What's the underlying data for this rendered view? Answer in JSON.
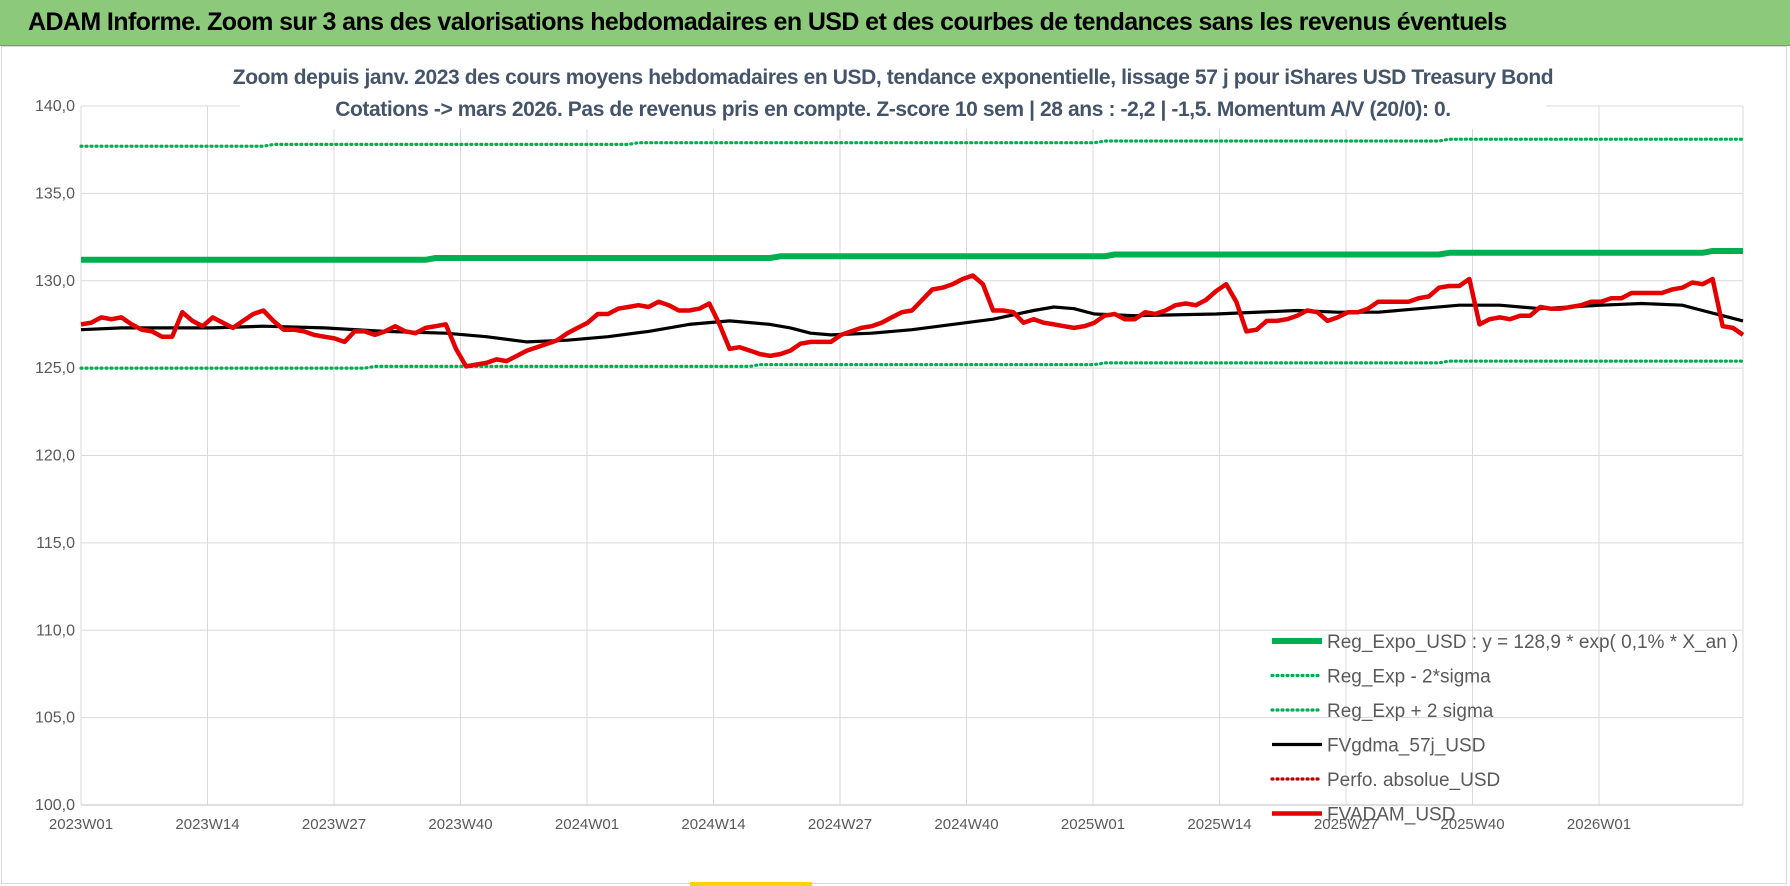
{
  "header": {
    "title": "ADAM Informe. Zoom sur 3 ans des valorisations hebdomadaires en USD et des courbes de tendances sans les revenus éventuels"
  },
  "chart_data": {
    "type": "line",
    "title_lines": [
      "Zoom depuis janv. 2023 des cours moyens hebdomadaires en USD, tendance exponentielle, lissage 57 j pour iShares USD Treasury Bond",
      "Cotations -> mars 2026. Pas de revenus pris en compte. Z-score 10 sem | 28 ans : -2,2 | -1,5. Momentum A/V (20/0): 0."
    ],
    "xlabel": "",
    "ylabel": "",
    "ylim": [
      100,
      140
    ],
    "y_ticks": [
      "140,0",
      "135,0",
      "130,0",
      "125,0",
      "120,0",
      "115,0",
      "110,0",
      "105,0",
      "100,0"
    ],
    "x_tick_labels": [
      "2023W01",
      "2023W14",
      "2023W27",
      "2023W40",
      "2024W01",
      "2024W14",
      "2024W27",
      "2024W40",
      "2025W01",
      "2025W14",
      "2025W27",
      "2025W40",
      "2026W01"
    ],
    "x_range_weeks": [
      0,
      164
    ],
    "grid": true,
    "legend_position": "bottom-right",
    "series": [
      {
        "name": "Reg_Expo_USD : y = 128,9 * exp( 0,1% *  X_an )",
        "color": "#00b050",
        "style": "thick",
        "points": [
          [
            0,
            131.2
          ],
          [
            34,
            131.2
          ],
          [
            35,
            131.3
          ],
          [
            68,
            131.3
          ],
          [
            69,
            131.4
          ],
          [
            101,
            131.4
          ],
          [
            102,
            131.5
          ],
          [
            134,
            131.5
          ],
          [
            135,
            131.6
          ],
          [
            160,
            131.6
          ],
          [
            161,
            131.7
          ],
          [
            164,
            131.7
          ]
        ]
      },
      {
        "name": "Reg_Exp - 2*sigma",
        "color": "#00b050",
        "style": "dotted",
        "points": [
          [
            0,
            125.0
          ],
          [
            28,
            125.0
          ],
          [
            29,
            125.1
          ],
          [
            66,
            125.1
          ],
          [
            67,
            125.2
          ],
          [
            100,
            125.2
          ],
          [
            101,
            125.3
          ],
          [
            134,
            125.3
          ],
          [
            135,
            125.4
          ],
          [
            164,
            125.4
          ]
        ]
      },
      {
        "name": "Reg_Exp + 2 sigma",
        "color": "#00b050",
        "style": "dotted",
        "points": [
          [
            0,
            137.7
          ],
          [
            18,
            137.7
          ],
          [
            19,
            137.8
          ],
          [
            54,
            137.8
          ],
          [
            55,
            137.9
          ],
          [
            100,
            137.9
          ],
          [
            101,
            138.0
          ],
          [
            134,
            138.0
          ],
          [
            135,
            138.1
          ],
          [
            164,
            138.1
          ]
        ]
      },
      {
        "name": "FVgdma_57j_USD",
        "color": "#000000",
        "style": "solid",
        "points": [
          [
            0,
            127.2
          ],
          [
            4,
            127.3
          ],
          [
            8,
            127.3
          ],
          [
            13,
            127.3
          ],
          [
            18,
            127.4
          ],
          [
            24,
            127.3
          ],
          [
            30,
            127.1
          ],
          [
            36,
            127.0
          ],
          [
            40,
            126.8
          ],
          [
            44,
            126.5
          ],
          [
            48,
            126.6
          ],
          [
            52,
            126.8
          ],
          [
            56,
            127.1
          ],
          [
            60,
            127.5
          ],
          [
            64,
            127.7
          ],
          [
            68,
            127.5
          ],
          [
            70,
            127.3
          ],
          [
            72,
            127.0
          ],
          [
            74,
            126.9
          ],
          [
            78,
            127.0
          ],
          [
            82,
            127.2
          ],
          [
            86,
            127.5
          ],
          [
            90,
            127.8
          ],
          [
            94,
            128.3
          ],
          [
            96,
            128.5
          ],
          [
            98,
            128.4
          ],
          [
            100,
            128.1
          ],
          [
            104,
            128.0
          ],
          [
            112,
            128.1
          ],
          [
            120,
            128.3
          ],
          [
            124,
            128.2
          ],
          [
            128,
            128.2
          ],
          [
            132,
            128.4
          ],
          [
            136,
            128.6
          ],
          [
            140,
            128.6
          ],
          [
            144,
            128.4
          ],
          [
            150,
            128.6
          ],
          [
            154,
            128.7
          ],
          [
            158,
            128.6
          ],
          [
            160,
            128.3
          ],
          [
            162,
            128.0
          ],
          [
            164,
            127.7
          ]
        ]
      },
      {
        "name": "Perfo. absolue_USD",
        "color": "#c00000",
        "style": "dotted-legend-only",
        "points": []
      },
      {
        "name": "FVADAM_USD",
        "color": "#e50000",
        "style": "thick",
        "points": [
          [
            0,
            127.5
          ],
          [
            1,
            127.6
          ],
          [
            2,
            127.9
          ],
          [
            3,
            127.8
          ],
          [
            4,
            127.9
          ],
          [
            5,
            127.5
          ],
          [
            6,
            127.2
          ],
          [
            7,
            127.1
          ],
          [
            8,
            126.8
          ],
          [
            9,
            126.8
          ],
          [
            10,
            128.2
          ],
          [
            11,
            127.7
          ],
          [
            12,
            127.4
          ],
          [
            13,
            127.9
          ],
          [
            14,
            127.6
          ],
          [
            15,
            127.3
          ],
          [
            16,
            127.7
          ],
          [
            17,
            128.1
          ],
          [
            18,
            128.3
          ],
          [
            19,
            127.7
          ],
          [
            20,
            127.2
          ],
          [
            21,
            127.2
          ],
          [
            22,
            127.1
          ],
          [
            23,
            126.9
          ],
          [
            24,
            126.8
          ],
          [
            25,
            126.7
          ],
          [
            26,
            126.5
          ],
          [
            27,
            127.1
          ],
          [
            28,
            127.1
          ],
          [
            29,
            126.9
          ],
          [
            30,
            127.1
          ],
          [
            31,
            127.4
          ],
          [
            32,
            127.1
          ],
          [
            33,
            127.0
          ],
          [
            34,
            127.3
          ],
          [
            35,
            127.4
          ],
          [
            36,
            127.5
          ],
          [
            37,
            126.1
          ],
          [
            38,
            125.1
          ],
          [
            39,
            125.2
          ],
          [
            40,
            125.3
          ],
          [
            41,
            125.5
          ],
          [
            42,
            125.4
          ],
          [
            43,
            125.7
          ],
          [
            44,
            126.0
          ],
          [
            45,
            126.2
          ],
          [
            46,
            126.4
          ],
          [
            47,
            126.6
          ],
          [
            48,
            127.0
          ],
          [
            49,
            127.3
          ],
          [
            50,
            127.6
          ],
          [
            51,
            128.1
          ],
          [
            52,
            128.1
          ],
          [
            53,
            128.4
          ],
          [
            54,
            128.5
          ],
          [
            55,
            128.6
          ],
          [
            56,
            128.5
          ],
          [
            57,
            128.8
          ],
          [
            58,
            128.6
          ],
          [
            59,
            128.3
          ],
          [
            60,
            128.3
          ],
          [
            61,
            128.4
          ],
          [
            62,
            128.7
          ],
          [
            63,
            127.5
          ],
          [
            64,
            126.1
          ],
          [
            65,
            126.2
          ],
          [
            66,
            126.0
          ],
          [
            67,
            125.8
          ],
          [
            68,
            125.7
          ],
          [
            69,
            125.8
          ],
          [
            70,
            126.0
          ],
          [
            71,
            126.4
          ],
          [
            72,
            126.5
          ],
          [
            73,
            126.5
          ],
          [
            74,
            126.5
          ],
          [
            75,
            126.9
          ],
          [
            76,
            127.1
          ],
          [
            77,
            127.3
          ],
          [
            78,
            127.4
          ],
          [
            79,
            127.6
          ],
          [
            80,
            127.9
          ],
          [
            81,
            128.2
          ],
          [
            82,
            128.3
          ],
          [
            83,
            128.9
          ],
          [
            84,
            129.5
          ],
          [
            85,
            129.6
          ],
          [
            86,
            129.8
          ],
          [
            87,
            130.1
          ],
          [
            88,
            130.3
          ],
          [
            89,
            129.8
          ],
          [
            90,
            128.3
          ],
          [
            91,
            128.3
          ],
          [
            92,
            128.2
          ],
          [
            93,
            127.6
          ],
          [
            94,
            127.8
          ],
          [
            95,
            127.6
          ],
          [
            96,
            127.5
          ],
          [
            97,
            127.4
          ],
          [
            98,
            127.3
          ],
          [
            99,
            127.4
          ],
          [
            100,
            127.6
          ],
          [
            101,
            128.0
          ],
          [
            102,
            128.1
          ],
          [
            103,
            127.8
          ],
          [
            104,
            127.8
          ],
          [
            105,
            128.2
          ],
          [
            106,
            128.1
          ],
          [
            107,
            128.3
          ],
          [
            108,
            128.6
          ],
          [
            109,
            128.7
          ],
          [
            110,
            128.6
          ],
          [
            111,
            128.9
          ],
          [
            112,
            129.4
          ],
          [
            113,
            129.8
          ],
          [
            114,
            128.8
          ],
          [
            115,
            127.1
          ],
          [
            116,
            127.2
          ],
          [
            117,
            127.7
          ],
          [
            118,
            127.7
          ],
          [
            119,
            127.8
          ],
          [
            120,
            128.0
          ],
          [
            121,
            128.3
          ],
          [
            122,
            128.2
          ],
          [
            123,
            127.7
          ],
          [
            124,
            127.9
          ],
          [
            125,
            128.2
          ],
          [
            126,
            128.2
          ],
          [
            127,
            128.4
          ],
          [
            128,
            128.8
          ],
          [
            129,
            128.8
          ],
          [
            130,
            128.8
          ],
          [
            131,
            128.8
          ],
          [
            132,
            129.0
          ],
          [
            133,
            129.1
          ],
          [
            134,
            129.6
          ],
          [
            135,
            129.7
          ],
          [
            136,
            129.7
          ],
          [
            137,
            130.1
          ],
          [
            138,
            127.5
          ],
          [
            139,
            127.8
          ],
          [
            140,
            127.9
          ],
          [
            141,
            127.8
          ],
          [
            142,
            128.0
          ],
          [
            143,
            128.0
          ],
          [
            144,
            128.5
          ],
          [
            145,
            128.4
          ],
          [
            146,
            128.4
          ],
          [
            147,
            128.5
          ],
          [
            148,
            128.6
          ],
          [
            149,
            128.8
          ],
          [
            150,
            128.8
          ],
          [
            151,
            129.0
          ],
          [
            152,
            129.0
          ],
          [
            153,
            129.3
          ],
          [
            154,
            129.3
          ],
          [
            155,
            129.3
          ],
          [
            156,
            129.3
          ],
          [
            157,
            129.5
          ],
          [
            158,
            129.6
          ],
          [
            159,
            129.9
          ],
          [
            160,
            129.8
          ],
          [
            161,
            130.1
          ],
          [
            162,
            127.4
          ],
          [
            163,
            127.3
          ],
          [
            164,
            126.9
          ]
        ]
      }
    ]
  }
}
